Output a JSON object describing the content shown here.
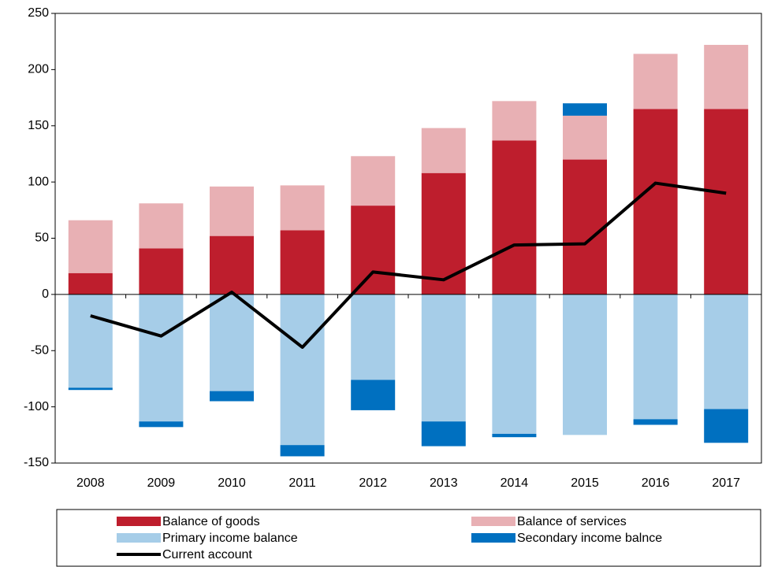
{
  "chart_data": {
    "type": "bar",
    "stacked": true,
    "categories": [
      "2008",
      "2009",
      "2010",
      "2011",
      "2012",
      "2013",
      "2014",
      "2015",
      "2016",
      "2017"
    ],
    "series": [
      {
        "name": "Balance of goods",
        "type": "bar",
        "color": "#be1e2d",
        "values": [
          19,
          41,
          52,
          57,
          79,
          108,
          137,
          120,
          165,
          165
        ]
      },
      {
        "name": "Balance of services",
        "type": "bar",
        "color": "#e8b0b4",
        "values": [
          47,
          40,
          44,
          40,
          44,
          40,
          35,
          39,
          49,
          57
        ]
      },
      {
        "name": "Primary income balance",
        "type": "bar",
        "color": "#a6cde8",
        "values": [
          -83,
          -113,
          -86,
          -134,
          -76,
          -113,
          -124,
          -125,
          -111,
          -102
        ]
      },
      {
        "name": "Secondary income balnce",
        "type": "bar",
        "color": "#0070c0",
        "values": [
          -2,
          -5,
          -9,
          -10,
          -27,
          -22,
          -3,
          11,
          -5,
          -30
        ]
      },
      {
        "name": "Current account",
        "type": "line",
        "color": "#000000",
        "values": [
          -19,
          -37,
          2,
          -47,
          20,
          13,
          44,
          45,
          99,
          90
        ]
      }
    ],
    "ylim": [
      -150,
      250
    ],
    "yticks": [
      -150,
      -100,
      -50,
      0,
      50,
      100,
      150,
      200,
      250
    ],
    "grid": false,
    "legend_position": "bottom"
  }
}
